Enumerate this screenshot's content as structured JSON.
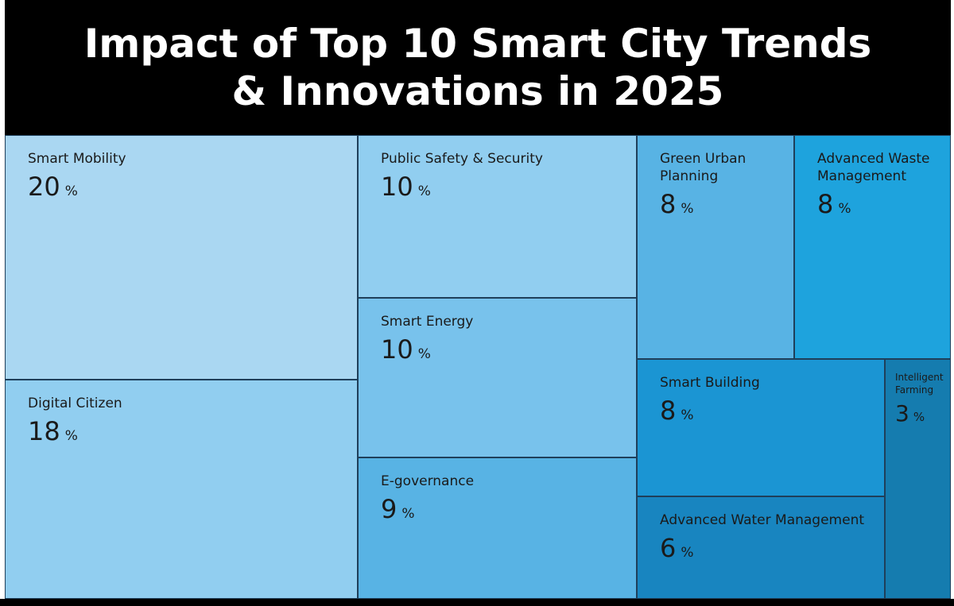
{
  "chart_data": {
    "type": "treemap",
    "title": "Impact of Top 10 Smart City Trends & Innovations in 2025",
    "unit": "%",
    "items": [
      {
        "label": "Smart Mobility",
        "value": 20,
        "color": "#aad7f2"
      },
      {
        "label": "Digital Citizen",
        "value": 18,
        "color": "#91cef0"
      },
      {
        "label": "Public Safety & Security",
        "value": 10,
        "color": "#91cef0"
      },
      {
        "label": "Smart Energy",
        "value": 10,
        "color": "#78c2ec"
      },
      {
        "label": "E-governance",
        "value": 9,
        "color": "#58b3e4"
      },
      {
        "label": "Green Urban Planning",
        "value": 8,
        "color": "#58b3e4"
      },
      {
        "label": "Advanced Waste Management",
        "value": 8,
        "color": "#1ea3dd"
      },
      {
        "label": "Smart Building",
        "value": 8,
        "color": "#1b95d3"
      },
      {
        "label": "Intelligent Farming",
        "value": 3,
        "color": "#157caf"
      },
      {
        "label": "Advanced Water Management",
        "value": 6,
        "color": "#1885c0"
      }
    ]
  }
}
